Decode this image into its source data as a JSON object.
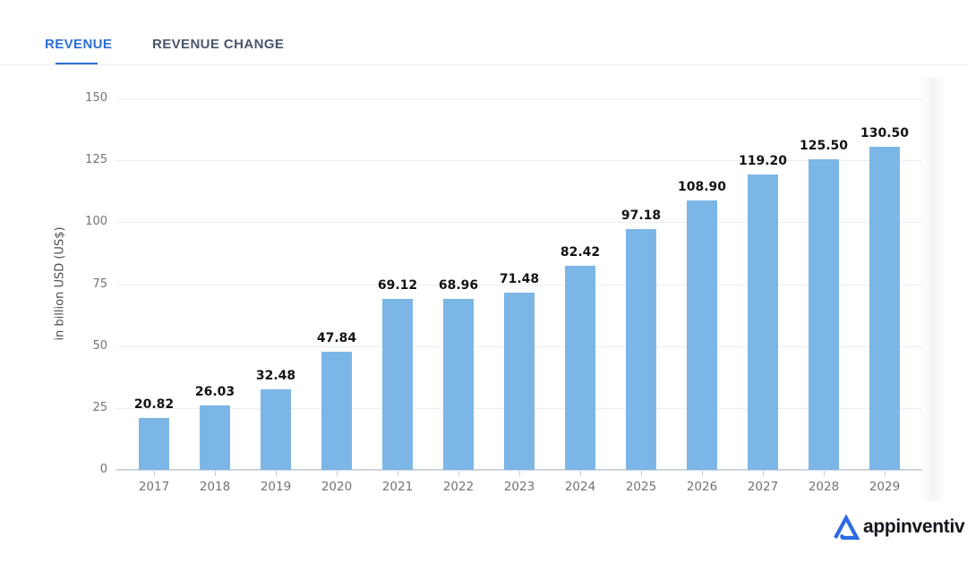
{
  "tabs": {
    "revenue": "REVENUE",
    "revenue_change": "REVENUE CHANGE"
  },
  "chart_data": {
    "type": "bar",
    "title": "",
    "categories": [
      "2017",
      "2018",
      "2019",
      "2020",
      "2021",
      "2022",
      "2023",
      "2024",
      "2025",
      "2026",
      "2027",
      "2028",
      "2029"
    ],
    "values": [
      20.82,
      26.03,
      32.48,
      47.84,
      69.12,
      68.96,
      71.48,
      82.42,
      97.18,
      108.9,
      119.2,
      125.5,
      130.5
    ],
    "value_labels": [
      "20.82",
      "26.03",
      "32.48",
      "47.84",
      "69.12",
      "68.96",
      "71.48",
      "82.42",
      "97.18",
      "108.90",
      "119.20",
      "125.50",
      "130.50"
    ],
    "xlabel": "",
    "ylabel": "in billion USD (US$)",
    "y_ticks": [
      0,
      25,
      50,
      75,
      100,
      125,
      150
    ],
    "ylim": [
      0,
      150
    ],
    "grid": true,
    "legend": "none",
    "bar_color": "#7cb6e6"
  },
  "colors": {
    "bar": "#7cb6e6",
    "tab_active": "#2b6fd6",
    "tab_inactive": "#49566b",
    "axis_text": "#737373",
    "value_text": "#131313",
    "gridline": "#ededed",
    "axis_line": "#ccd6e0",
    "logo_blue": "#2d6ae3",
    "logo_text": "#15151e"
  },
  "logo": {
    "brand": "appinventiv"
  }
}
